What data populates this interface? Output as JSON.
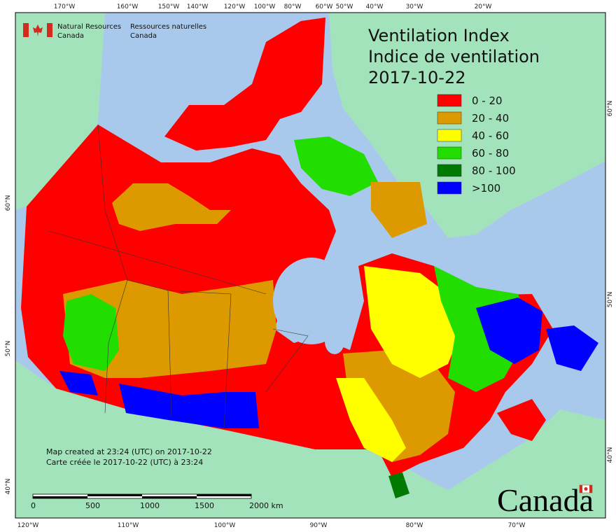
{
  "header": {
    "agency_en": [
      "Natural Resources",
      "Canada"
    ],
    "agency_fr": [
      "Ressources naturelles",
      "Canada"
    ]
  },
  "title": [
    "Ventilation Index",
    "Indice de ventilation",
    "2017-10-22"
  ],
  "legend": [
    {
      "label": "0 - 20",
      "color": "#ff0000"
    },
    {
      "label": "20 - 40",
      "color": "#dc9a00"
    },
    {
      "label": "40 - 60",
      "color": "#ffff00"
    },
    {
      "label": "60 - 80",
      "color": "#22dd00"
    },
    {
      "label": "80 - 100",
      "color": "#007a00"
    },
    {
      "label": ">100",
      "color": "#0000ff"
    }
  ],
  "notes": [
    "Map created at 23:24 (UTC) on 2017-10-22",
    "Carte créée le 2017-10-22 (UTC) à 23:24"
  ],
  "scalebar": [
    "0",
    "500",
    "1000",
    "1500",
    "2000 km"
  ],
  "graticule": {
    "top": [
      "170°W",
      "160°W",
      "150°W",
      "140°W",
      "120°W",
      "100°W",
      "80°W",
      "60°W",
      "50°W",
      "40°W",
      "30°W",
      "20°W"
    ],
    "bottom": [
      "120°W",
      "110°W",
      "100°W",
      "90°W",
      "80°W",
      "70°W"
    ],
    "left": [
      "60°N",
      "50°N",
      "40°N"
    ],
    "right": [
      "60°N",
      "50°N",
      "40°N"
    ]
  },
  "wordmark": "Canada"
}
